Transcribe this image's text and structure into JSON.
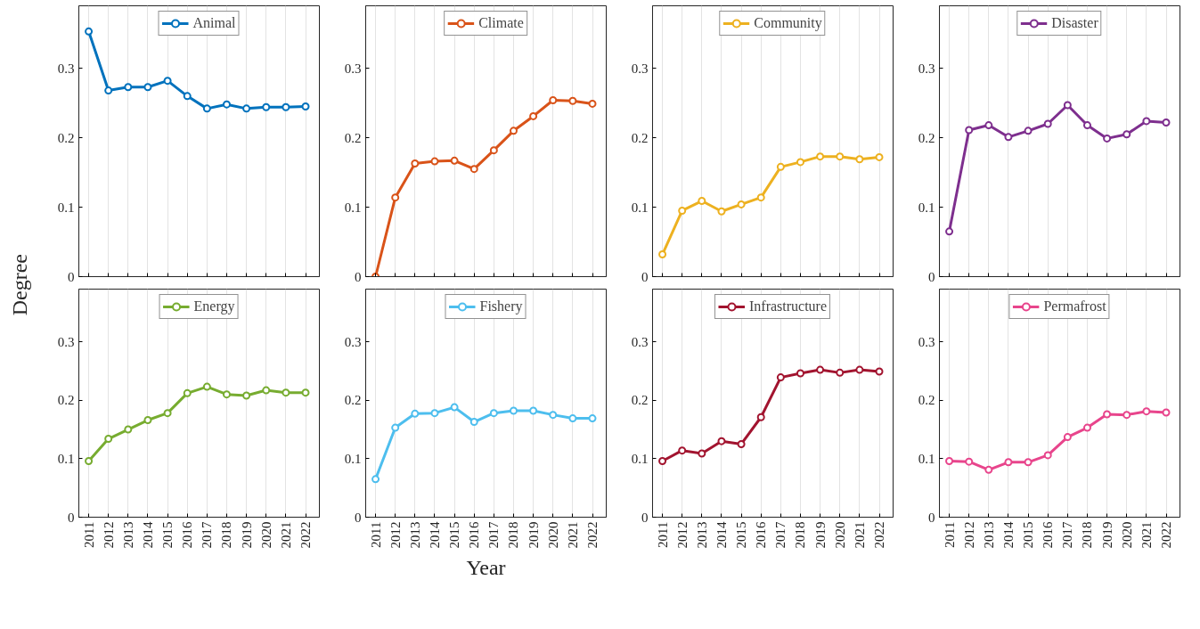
{
  "chart_data": [
    {
      "type": "line",
      "ylabel": "Degree",
      "x": [
        2011,
        2012,
        2013,
        2014,
        2015,
        2016,
        2017,
        2018,
        2019,
        2020,
        2021,
        2022
      ],
      "xlim": [
        2010.5,
        2022.7
      ],
      "xticks": [
        2011,
        2012,
        2013,
        2014,
        2015,
        2016,
        2017,
        2018,
        2019,
        2020,
        2021,
        2022
      ],
      "ylim": [
        0,
        0.39
      ],
      "yticks": [
        0,
        0.1,
        0.2,
        0.3
      ],
      "grid": "x",
      "legend": "top",
      "marker": "circle",
      "tick_labels": "y",
      "series": [
        {
          "name": "Animal",
          "color": "#0072bd",
          "values": [
            0.353,
            0.268,
            0.273,
            0.273,
            0.282,
            0.26,
            0.242,
            0.248,
            0.242,
            0.244,
            0.244,
            0.245
          ]
        }
      ]
    },
    {
      "type": "line",
      "x": [
        2011,
        2012,
        2013,
        2014,
        2015,
        2016,
        2017,
        2018,
        2019,
        2020,
        2021,
        2022
      ],
      "xlim": [
        2010.5,
        2022.7
      ],
      "xticks": [
        2011,
        2012,
        2013,
        2014,
        2015,
        2016,
        2017,
        2018,
        2019,
        2020,
        2021,
        2022
      ],
      "ylim": [
        0,
        0.39
      ],
      "yticks": [
        0,
        0.1,
        0.2,
        0.3
      ],
      "grid": "x",
      "legend": "top",
      "marker": "circle",
      "tick_labels": "y",
      "series": [
        {
          "name": "Climate",
          "color": "#d95319",
          "values": [
            0,
            0.114,
            0.163,
            0.166,
            0.167,
            0.155,
            0.182,
            0.21,
            0.231,
            0.254,
            0.253,
            0.249
          ]
        }
      ]
    },
    {
      "type": "line",
      "x": [
        2011,
        2012,
        2013,
        2014,
        2015,
        2016,
        2017,
        2018,
        2019,
        2020,
        2021,
        2022
      ],
      "xlim": [
        2010.5,
        2022.7
      ],
      "xticks": [
        2011,
        2012,
        2013,
        2014,
        2015,
        2016,
        2017,
        2018,
        2019,
        2020,
        2021,
        2022
      ],
      "ylim": [
        0,
        0.39
      ],
      "yticks": [
        0,
        0.1,
        0.2,
        0.3
      ],
      "grid": "x",
      "legend": "top",
      "marker": "circle",
      "tick_labels": "y",
      "series": [
        {
          "name": "Community",
          "color": "#edb120",
          "values": [
            0.032,
            0.095,
            0.109,
            0.094,
            0.104,
            0.114,
            0.158,
            0.165,
            0.173,
            0.173,
            0.169,
            0.172
          ]
        }
      ]
    },
    {
      "type": "line",
      "x": [
        2011,
        2012,
        2013,
        2014,
        2015,
        2016,
        2017,
        2018,
        2019,
        2020,
        2021,
        2022
      ],
      "xlim": [
        2010.5,
        2022.7
      ],
      "xticks": [
        2011,
        2012,
        2013,
        2014,
        2015,
        2016,
        2017,
        2018,
        2019,
        2020,
        2021,
        2022
      ],
      "ylim": [
        0,
        0.39
      ],
      "yticks": [
        0,
        0.1,
        0.2,
        0.3
      ],
      "grid": "x",
      "legend": "top",
      "marker": "circle",
      "tick_labels": "y",
      "series": [
        {
          "name": "Disaster",
          "color": "#7e2f8e",
          "values": [
            0.065,
            0.211,
            0.218,
            0.201,
            0.21,
            0.22,
            0.247,
            0.218,
            0.199,
            0.205,
            0.224,
            0.222
          ]
        }
      ]
    },
    {
      "type": "line",
      "x": [
        2011,
        2012,
        2013,
        2014,
        2015,
        2016,
        2017,
        2018,
        2019,
        2020,
        2021,
        2022
      ],
      "xlim": [
        2010.5,
        2022.7
      ],
      "xticks": [
        2011,
        2012,
        2013,
        2014,
        2015,
        2016,
        2017,
        2018,
        2019,
        2020,
        2021,
        2022
      ],
      "ylim": [
        0,
        0.39
      ],
      "yticks": [
        0,
        0.1,
        0.2,
        0.3
      ],
      "grid": "x",
      "legend": "top",
      "marker": "circle",
      "series": [
        {
          "name": "Energy",
          "color": "#77ac30",
          "values": [
            0.096,
            0.134,
            0.15,
            0.166,
            0.178,
            0.212,
            0.223,
            0.21,
            0.208,
            0.217,
            0.213,
            0.213
          ]
        }
      ]
    },
    {
      "type": "line",
      "x": [
        2011,
        2012,
        2013,
        2014,
        2015,
        2016,
        2017,
        2018,
        2019,
        2020,
        2021,
        2022
      ],
      "xlim": [
        2010.5,
        2022.7
      ],
      "xticks": [
        2011,
        2012,
        2013,
        2014,
        2015,
        2016,
        2017,
        2018,
        2019,
        2020,
        2021,
        2022
      ],
      "ylim": [
        0,
        0.39
      ],
      "yticks": [
        0,
        0.1,
        0.2,
        0.3
      ],
      "grid": "x",
      "legend": "top",
      "marker": "circle",
      "xlabel": "Year",
      "series": [
        {
          "name": "Fishery",
          "color": "#4dbeee",
          "values": [
            0.065,
            0.153,
            0.177,
            0.178,
            0.188,
            0.163,
            0.178,
            0.182,
            0.182,
            0.175,
            0.169,
            0.169
          ]
        }
      ]
    },
    {
      "type": "line",
      "x": [
        2011,
        2012,
        2013,
        2014,
        2015,
        2016,
        2017,
        2018,
        2019,
        2020,
        2021,
        2022
      ],
      "xlim": [
        2010.5,
        2022.7
      ],
      "xticks": [
        2011,
        2012,
        2013,
        2014,
        2015,
        2016,
        2017,
        2018,
        2019,
        2020,
        2021,
        2022
      ],
      "ylim": [
        0,
        0.39
      ],
      "yticks": [
        0,
        0.1,
        0.2,
        0.3
      ],
      "grid": "x",
      "legend": "top",
      "marker": "circle",
      "series": [
        {
          "name": "Infrastructure",
          "color": "#a2142f",
          "values": [
            0.096,
            0.114,
            0.109,
            0.13,
            0.125,
            0.171,
            0.239,
            0.246,
            0.252,
            0.247,
            0.252,
            0.249
          ]
        }
      ]
    },
    {
      "type": "line",
      "x": [
        2011,
        2012,
        2013,
        2014,
        2015,
        2016,
        2017,
        2018,
        2019,
        2020,
        2021,
        2022
      ],
      "xlim": [
        2010.5,
        2022.7
      ],
      "xticks": [
        2011,
        2012,
        2013,
        2014,
        2015,
        2016,
        2017,
        2018,
        2019,
        2020,
        2021,
        2022
      ],
      "ylim": [
        0,
        0.39
      ],
      "yticks": [
        0,
        0.1,
        0.2,
        0.3
      ],
      "grid": "x",
      "legend": "top",
      "marker": "circle",
      "series": [
        {
          "name": "Permafrost",
          "color": "#e8458c",
          "values": [
            0.096,
            0.095,
            0.081,
            0.094,
            0.094,
            0.106,
            0.137,
            0.153,
            0.176,
            0.175,
            0.181,
            0.179
          ]
        }
      ]
    }
  ]
}
